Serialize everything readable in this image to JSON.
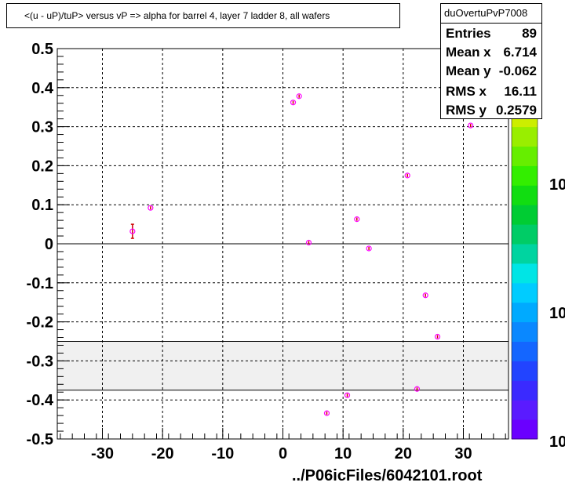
{
  "title": "<(u - uP)/tuP> versus  vP => alpha for barrel 4, layer 7 ladder 8, all wafers",
  "footer": "../P06icFiles/6042101.root",
  "stats": {
    "name": "duOvertuPvP7008",
    "rows": [
      {
        "label": "Entries",
        "value": "89"
      },
      {
        "label": "Mean x",
        "value": "6.714"
      },
      {
        "label": "Mean y",
        "value": "-0.062"
      },
      {
        "label": "RMS x",
        "value": "16.11"
      },
      {
        "label": "RMS y",
        "value": "0.2579"
      }
    ]
  },
  "colors": {
    "marker": "#ff00ff",
    "errorbar": "#cc0000",
    "band": "#f0f0f0",
    "grid": "#000000"
  },
  "chart_data": {
    "type": "scatter",
    "xlim": [
      -37.5,
      37.5
    ],
    "ylim": [
      -0.5,
      0.5
    ],
    "x_ticks": [
      -30,
      -20,
      -10,
      0,
      10,
      20,
      30
    ],
    "x_tick_labels": [
      "-30",
      "-20",
      "-10",
      "0",
      "10",
      "20",
      "30"
    ],
    "y_ticks": [
      -0.5,
      -0.4,
      -0.3,
      -0.2,
      -0.1,
      0,
      0.1,
      0.2,
      0.3,
      0.4,
      0.5
    ],
    "y_tick_labels": [
      "-0.5",
      "-0.4",
      "-0.3",
      "-0.2",
      "-0.1",
      "0",
      "0.1",
      "0.2",
      "0.3",
      "0.4",
      "0.5"
    ],
    "grid": true,
    "zero_line": true,
    "band_y": [
      -0.375,
      -0.25
    ],
    "colorbar_labels": [
      "10",
      "10",
      "10"
    ],
    "points": [
      {
        "x": -25.0,
        "y": 0.032,
        "err": 0.018
      },
      {
        "x": -22.0,
        "y": 0.092,
        "err": 0.004
      },
      {
        "x": 1.7,
        "y": 0.362,
        "err": 0.004
      },
      {
        "x": 2.7,
        "y": 0.378,
        "err": 0.004
      },
      {
        "x": 4.3,
        "y": 0.003,
        "err": 0.004
      },
      {
        "x": 7.3,
        "y": -0.434,
        "err": 0.004
      },
      {
        "x": 10.7,
        "y": -0.388,
        "err": 0.004
      },
      {
        "x": 12.3,
        "y": 0.063,
        "err": 0.004
      },
      {
        "x": 14.3,
        "y": -0.012,
        "err": 0.004
      },
      {
        "x": 20.7,
        "y": 0.175,
        "err": 0.004
      },
      {
        "x": 22.3,
        "y": -0.372,
        "err": 0.004
      },
      {
        "x": 23.7,
        "y": -0.132,
        "err": 0.004
      },
      {
        "x": 25.7,
        "y": -0.238,
        "err": 0.004
      },
      {
        "x": 31.2,
        "y": 0.303,
        "err": 0.004
      }
    ]
  }
}
